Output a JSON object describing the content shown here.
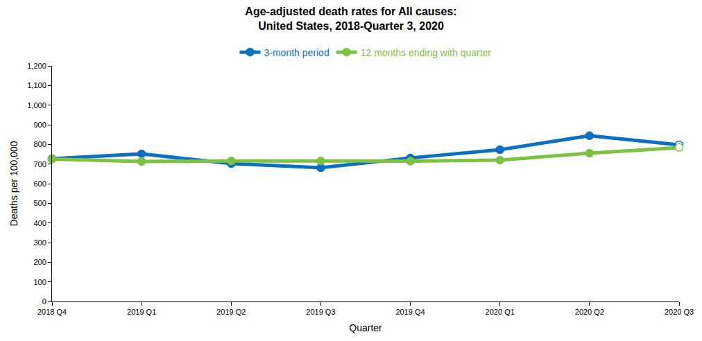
{
  "chart_data": {
    "type": "line",
    "title": [
      "Age-adjusted death rates for All causes:",
      "United States, 2018-Quarter 3, 2020"
    ],
    "x_label": "Quarter",
    "y_label": "Deaths per 100,000",
    "categories": [
      "2018 Q4",
      "2019 Q1",
      "2019 Q2",
      "2019 Q3",
      "2019 Q4",
      "2020 Q1",
      "2020 Q2",
      "2020 Q3"
    ],
    "series": [
      {
        "name": "3-month period",
        "color": "#0b6fc2",
        "marker": "circle",
        "values": [
          727,
          752,
          702,
          681,
          731,
          773,
          844,
          798
        ]
      },
      {
        "name": "12 months ending with quarter",
        "color": "#7dc242",
        "marker": "circle",
        "values": [
          725,
          713,
          716,
          716,
          715,
          720,
          755,
          784
        ]
      }
    ],
    "ylim": [
      0,
      1200
    ],
    "yticks": [
      0,
      100,
      200,
      300,
      400,
      500,
      600,
      700,
      800,
      900,
      {
        "value": 1000,
        "label": "1,000"
      },
      {
        "value": 1100,
        "label": "1,100"
      },
      {
        "value": 1200,
        "label": "1,200"
      }
    ],
    "grid": false,
    "legend": "top"
  }
}
